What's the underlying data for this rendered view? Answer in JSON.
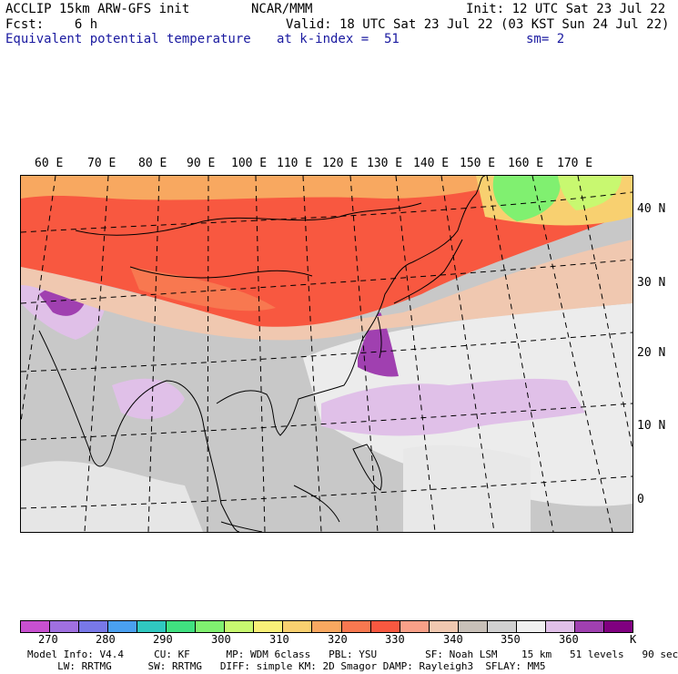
{
  "header": {
    "line1_left": "ACCLIP 15km ARW-GFS init",
    "line1_center": "NCAR/MMM",
    "line1_right": "Init: 12 UTC Sat 23 Jul 22",
    "line2_left": "Fcst:    6 h",
    "line2_right": "Valid: 18 UTC Sat 23 Jul 22 (03 KST Sun 24 Jul 22)",
    "line3_field": "Equivalent potential temperature",
    "line3_level": "at k-index =  51",
    "line3_smooth": "sm= 2"
  },
  "map": {
    "lon_labels": [
      "60 E",
      "70 E",
      "80 E",
      "90 E",
      "100 E",
      "110 E",
      "120 E",
      "130 E",
      "140 E",
      "150 E",
      "160 E",
      "170 E"
    ],
    "lat_labels": [
      "40 N",
      "30 N",
      "20 N",
      "10 N",
      "0"
    ]
  },
  "colorbar": {
    "unit": "K",
    "ticks": [
      "270",
      "280",
      "290",
      "300",
      "310",
      "320",
      "330",
      "340",
      "350",
      "360"
    ],
    "colors": [
      "#c850d0",
      "#a070e0",
      "#7878e8",
      "#4aa0f0",
      "#30c8c0",
      "#40e080",
      "#80f070",
      "#c8f870",
      "#f8f078",
      "#f8d070",
      "#f8a860",
      "#f87850",
      "#f85840",
      "#f8a088",
      "#f0c8b0",
      "#c8c0b8",
      "#d0d0d0",
      "#f0f0f0",
      "#e0c0e8",
      "#a040b0",
      "#800080"
    ]
  },
  "footer": {
    "line1": "Model Info: V4.4     CU: KF      MP: WDM 6class   PBL: YSU        SF: Noah LSM    15 km   51 levels   90 sec",
    "line2": "     LW: RRTMG      SW: RRTMG   DIFF: simple KM: 2D Smagor DAMP: Rayleigh3  SFLAY: MM5"
  }
}
